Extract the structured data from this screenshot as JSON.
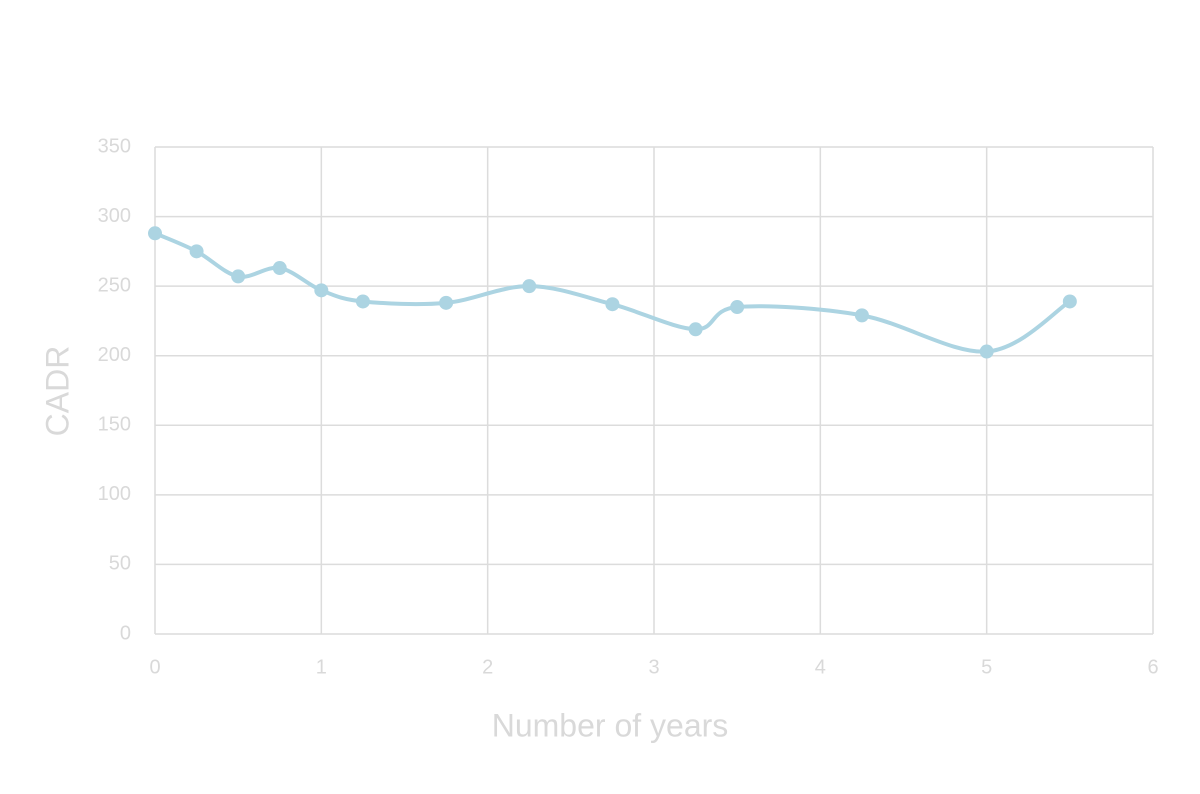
{
  "chart_data": {
    "type": "line",
    "x_label": "Number of years",
    "y_label": "CADR",
    "x": [
      0,
      0.25,
      0.5,
      0.75,
      1,
      1.25,
      1.75,
      2.25,
      2.75,
      3.25,
      3.5,
      4.25,
      5,
      5.5
    ],
    "series": [
      {
        "color": "#acd4e2",
        "values": [
          288,
          275,
          257,
          263,
          247,
          239,
          238,
          250,
          237,
          219,
          235,
          229,
          203,
          239
        ]
      }
    ],
    "xlim": [
      0,
      6
    ],
    "xticks": [
      0,
      1,
      2,
      3,
      4,
      5,
      6
    ],
    "ylim": [
      0,
      350
    ],
    "yticks": [
      0,
      50,
      100,
      150,
      200,
      250,
      300,
      350
    ],
    "grid": true,
    "smooth": true
  }
}
